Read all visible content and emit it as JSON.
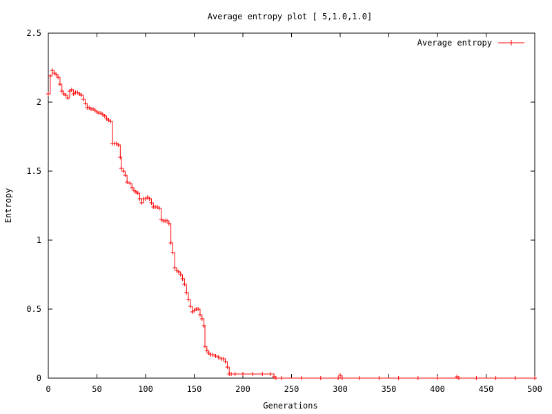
{
  "chart_data": {
    "type": "line",
    "title": "Average entropy plot [ 5,1.0,1.0]",
    "xlabel": "Generations",
    "ylabel": "Entropy",
    "xlim": [
      0,
      500
    ],
    "ylim": [
      0,
      2.5
    ],
    "x_ticks": [
      0,
      50,
      100,
      150,
      200,
      250,
      300,
      350,
      400,
      450,
      500
    ],
    "x_tick_labels": [
      "0",
      "50",
      "100",
      "150",
      "200",
      "250",
      "300",
      "350",
      "400",
      "450",
      "500"
    ],
    "y_ticks": [
      0,
      0.5,
      1,
      1.5,
      2,
      2.5
    ],
    "y_tick_labels": [
      "0",
      "0.5",
      "1",
      "1.5",
      "2",
      "2.5"
    ],
    "grid": false,
    "legend_position": "top-right",
    "series": [
      {
        "name": "Average entropy",
        "color": "#ff0000",
        "marker": "plus",
        "style": "steps",
        "points": [
          [
            0,
            2.06
          ],
          [
            2,
            2.19
          ],
          [
            4,
            2.23
          ],
          [
            6,
            2.21
          ],
          [
            8,
            2.2
          ],
          [
            10,
            2.18
          ],
          [
            12,
            2.13
          ],
          [
            14,
            2.08
          ],
          [
            16,
            2.06
          ],
          [
            18,
            2.05
          ],
          [
            20,
            2.03
          ],
          [
            22,
            2.08
          ],
          [
            24,
            2.09
          ],
          [
            26,
            2.06
          ],
          [
            28,
            2.07
          ],
          [
            30,
            2.07
          ],
          [
            32,
            2.06
          ],
          [
            34,
            2.05
          ],
          [
            36,
            2.02
          ],
          [
            38,
            1.99
          ],
          [
            40,
            1.96
          ],
          [
            42,
            1.96
          ],
          [
            44,
            1.95
          ],
          [
            46,
            1.95
          ],
          [
            48,
            1.94
          ],
          [
            50,
            1.93
          ],
          [
            52,
            1.92
          ],
          [
            54,
            1.92
          ],
          [
            56,
            1.91
          ],
          [
            58,
            1.9
          ],
          [
            60,
            1.88
          ],
          [
            62,
            1.87
          ],
          [
            64,
            1.86
          ],
          [
            66,
            1.7
          ],
          [
            68,
            1.7
          ],
          [
            70,
            1.7
          ],
          [
            72,
            1.69
          ],
          [
            74,
            1.6
          ],
          [
            75,
            1.52
          ],
          [
            77,
            1.5
          ],
          [
            79,
            1.47
          ],
          [
            81,
            1.42
          ],
          [
            84,
            1.41
          ],
          [
            86,
            1.38
          ],
          [
            88,
            1.36
          ],
          [
            90,
            1.35
          ],
          [
            92,
            1.34
          ],
          [
            94,
            1.3
          ],
          [
            96,
            1.27
          ],
          [
            98,
            1.3
          ],
          [
            100,
            1.3
          ],
          [
            102,
            1.31
          ],
          [
            104,
            1.3
          ],
          [
            106,
            1.27
          ],
          [
            108,
            1.24
          ],
          [
            110,
            1.24
          ],
          [
            112,
            1.24
          ],
          [
            114,
            1.23
          ],
          [
            116,
            1.15
          ],
          [
            118,
            1.14
          ],
          [
            120,
            1.14
          ],
          [
            122,
            1.14
          ],
          [
            124,
            1.12
          ],
          [
            126,
            0.98
          ],
          [
            128,
            0.91
          ],
          [
            130,
            0.8
          ],
          [
            132,
            0.78
          ],
          [
            134,
            0.77
          ],
          [
            136,
            0.75
          ],
          [
            138,
            0.72
          ],
          [
            140,
            0.68
          ],
          [
            142,
            0.62
          ],
          [
            144,
            0.57
          ],
          [
            146,
            0.52
          ],
          [
            148,
            0.48
          ],
          [
            150,
            0.49
          ],
          [
            152,
            0.5
          ],
          [
            154,
            0.5
          ],
          [
            156,
            0.46
          ],
          [
            158,
            0.43
          ],
          [
            160,
            0.38
          ],
          [
            161,
            0.23
          ],
          [
            163,
            0.2
          ],
          [
            165,
            0.18
          ],
          [
            167,
            0.17
          ],
          [
            169,
            0.17
          ],
          [
            172,
            0.16
          ],
          [
            175,
            0.15
          ],
          [
            178,
            0.14
          ],
          [
            180,
            0.14
          ],
          [
            182,
            0.12
          ],
          [
            184,
            0.08
          ],
          [
            186,
            0.03
          ],
          [
            188,
            0.03
          ],
          [
            192,
            0.03
          ],
          [
            200,
            0.03
          ],
          [
            210,
            0.03
          ],
          [
            220,
            0.03
          ],
          [
            228,
            0.03
          ],
          [
            232,
            0.01
          ],
          [
            234,
            0.0
          ],
          [
            240,
            0.0
          ],
          [
            260,
            0.0
          ],
          [
            280,
            0.0
          ],
          [
            298,
            0.0
          ],
          [
            300,
            0.02
          ],
          [
            302,
            0.0
          ],
          [
            320,
            0.0
          ],
          [
            340,
            0.0
          ],
          [
            360,
            0.0
          ],
          [
            380,
            0.0
          ],
          [
            400,
            0.0
          ],
          [
            420,
            0.01
          ],
          [
            422,
            0.0
          ],
          [
            440,
            0.0
          ],
          [
            460,
            0.0
          ],
          [
            480,
            0.0
          ],
          [
            500,
            0.0
          ]
        ]
      }
    ]
  }
}
